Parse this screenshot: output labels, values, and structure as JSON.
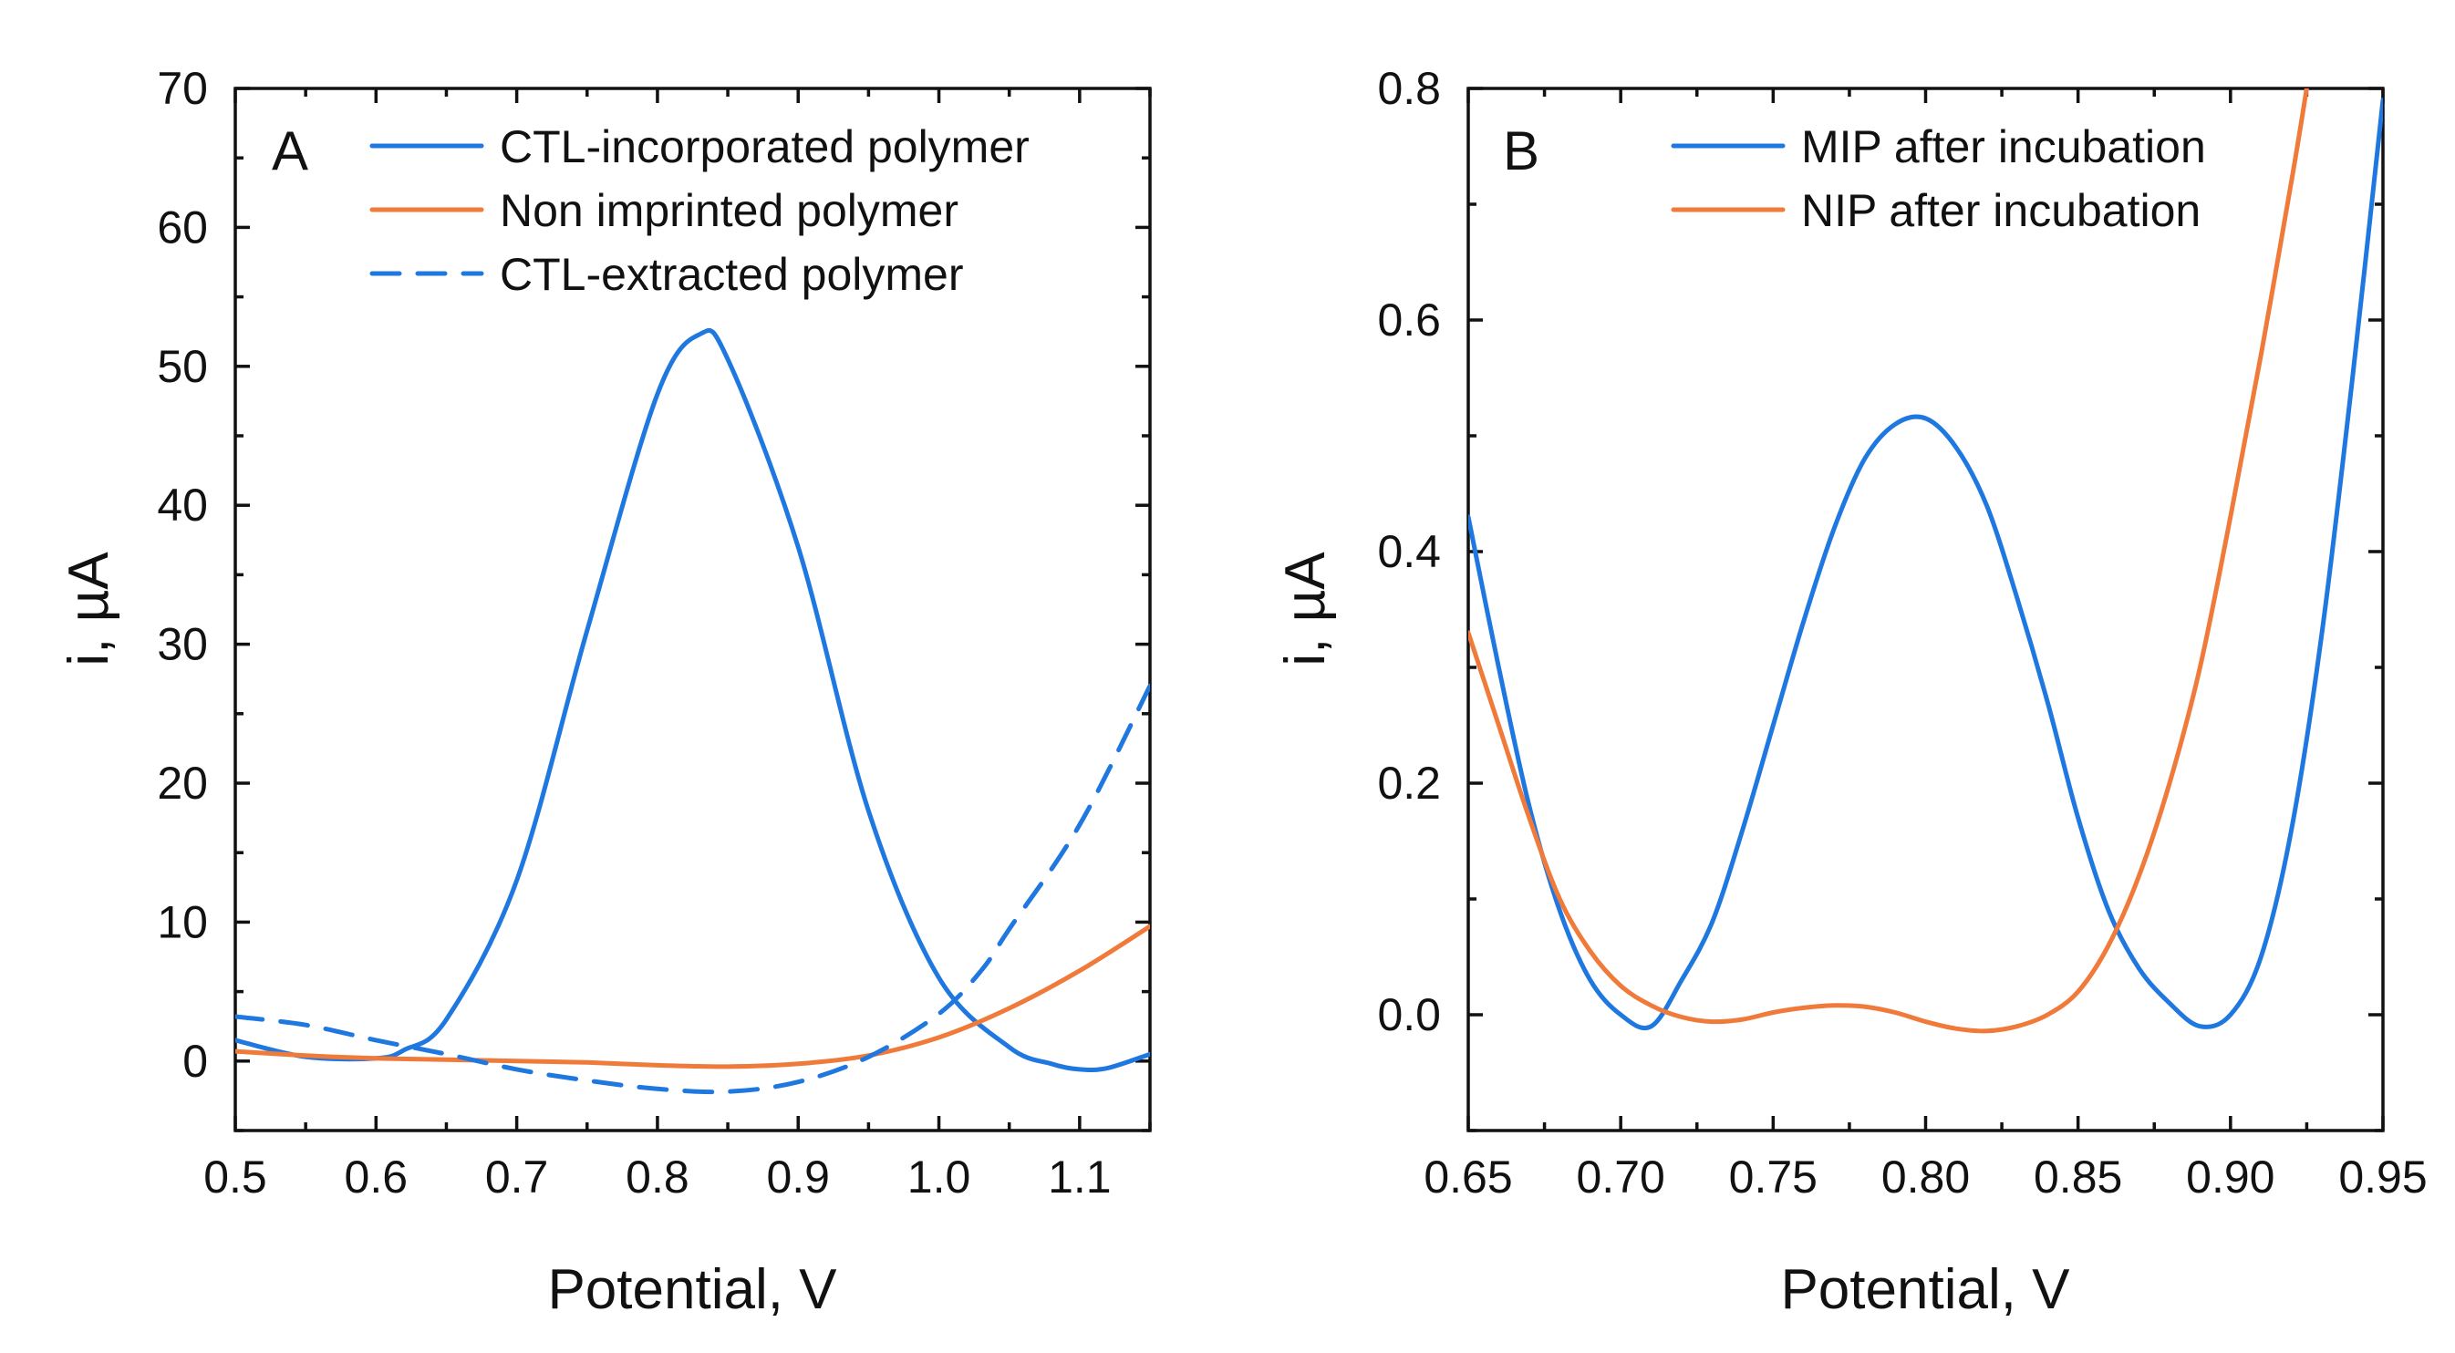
{
  "colors": {
    "blue": "#1f77e0",
    "orange": "#f07a3a"
  },
  "chart_data": [
    {
      "type": "line",
      "panel": "A",
      "xlabel": "Potential, V",
      "ylabel": "i, µA",
      "xlim": [
        0.5,
        1.15
      ],
      "ylim": [
        -5,
        70
      ],
      "xticks": [
        0.5,
        0.6,
        0.7,
        0.8,
        0.9,
        1.0,
        1.1
      ],
      "xtick_labels": [
        "0.5",
        "0.6",
        "0.7",
        "0.8",
        "0.9",
        "1.0",
        "1.1"
      ],
      "yticks": [
        0,
        10,
        20,
        30,
        40,
        50,
        60,
        70
      ],
      "ytick_labels": [
        "0",
        "10",
        "20",
        "30",
        "40",
        "50",
        "60",
        "70"
      ],
      "legend_position": "top-right",
      "series": [
        {
          "name": "CTL-incorporated polymer",
          "color": "#1f77e0",
          "dash": "solid",
          "x": [
            0.5,
            0.55,
            0.6,
            0.62,
            0.65,
            0.7,
            0.75,
            0.8,
            0.83,
            0.85,
            0.9,
            0.95,
            1.0,
            1.05,
            1.08,
            1.1,
            1.12,
            1.15
          ],
          "y": [
            1.5,
            0.3,
            0.2,
            0.8,
            3.0,
            13.0,
            31.0,
            48.0,
            52.3,
            50.5,
            37.0,
            18.0,
            6.0,
            1.0,
            -0.2,
            -0.6,
            -0.5,
            0.5
          ]
        },
        {
          "name": "Non imprinted polymer",
          "color": "#f07a3a",
          "dash": "solid",
          "x": [
            0.5,
            0.55,
            0.6,
            0.65,
            0.7,
            0.75,
            0.8,
            0.85,
            0.9,
            0.95,
            1.0,
            1.05,
            1.1,
            1.15
          ],
          "y": [
            0.7,
            0.4,
            0.2,
            0.1,
            0.0,
            -0.1,
            -0.3,
            -0.4,
            -0.2,
            0.4,
            1.7,
            3.8,
            6.5,
            9.7
          ]
        },
        {
          "name": "CTL-extracted polymer",
          "color": "#1f77e0",
          "dash": "dashed",
          "x": [
            0.5,
            0.55,
            0.6,
            0.65,
            0.7,
            0.75,
            0.8,
            0.85,
            0.9,
            0.95,
            1.0,
            1.03,
            1.05,
            1.1,
            1.15
          ],
          "y": [
            3.2,
            2.6,
            1.5,
            0.5,
            -0.6,
            -1.4,
            -2.0,
            -2.2,
            -1.5,
            0.3,
            3.4,
            6.5,
            9.5,
            17.0,
            27.0
          ]
        }
      ]
    },
    {
      "type": "line",
      "panel": "B",
      "xlabel": "Potential, V",
      "ylabel": "i, µA",
      "xlim": [
        0.65,
        0.95
      ],
      "ylim": [
        -0.1,
        0.8
      ],
      "xticks": [
        0.65,
        0.7,
        0.75,
        0.8,
        0.85,
        0.9,
        0.95
      ],
      "xtick_labels": [
        "0.65",
        "0.70",
        "0.75",
        "0.80",
        "0.85",
        "0.90",
        "0.95"
      ],
      "yticks": [
        0.0,
        0.2,
        0.4,
        0.6,
        0.8
      ],
      "ytick_labels": [
        "0.0",
        "0.2",
        "0.4",
        "0.6",
        "0.8"
      ],
      "legend_position": "top-right",
      "series": [
        {
          "name": "MIP after incubation",
          "color": "#1f77e0",
          "dash": "solid",
          "x": [
            0.65,
            0.66,
            0.67,
            0.68,
            0.69,
            0.7,
            0.71,
            0.72,
            0.73,
            0.74,
            0.75,
            0.76,
            0.77,
            0.78,
            0.79,
            0.8,
            0.81,
            0.82,
            0.83,
            0.84,
            0.85,
            0.86,
            0.87,
            0.88,
            0.89,
            0.9,
            0.91,
            0.92,
            0.93,
            0.94,
            0.95
          ],
          "y": [
            0.43,
            0.3,
            0.18,
            0.09,
            0.03,
            0.0,
            -0.01,
            0.03,
            0.08,
            0.16,
            0.25,
            0.34,
            0.42,
            0.48,
            0.51,
            0.515,
            0.49,
            0.44,
            0.36,
            0.27,
            0.17,
            0.09,
            0.04,
            0.01,
            -0.01,
            0.0,
            0.05,
            0.16,
            0.33,
            0.55,
            0.79
          ]
        },
        {
          "name": "NIP after incubation",
          "color": "#f07a3a",
          "dash": "solid",
          "x": [
            0.65,
            0.66,
            0.67,
            0.68,
            0.69,
            0.7,
            0.71,
            0.72,
            0.73,
            0.74,
            0.75,
            0.76,
            0.77,
            0.78,
            0.79,
            0.8,
            0.81,
            0.82,
            0.83,
            0.84,
            0.85,
            0.86,
            0.87,
            0.88,
            0.89,
            0.9,
            0.91,
            0.92,
            0.925
          ],
          "y": [
            0.33,
            0.25,
            0.17,
            0.1,
            0.055,
            0.025,
            0.008,
            -0.002,
            -0.006,
            -0.004,
            0.002,
            0.006,
            0.008,
            0.007,
            0.002,
            -0.006,
            -0.012,
            -0.014,
            -0.01,
            0.0,
            0.02,
            0.06,
            0.12,
            0.2,
            0.3,
            0.43,
            0.57,
            0.72,
            0.8
          ]
        }
      ]
    }
  ]
}
